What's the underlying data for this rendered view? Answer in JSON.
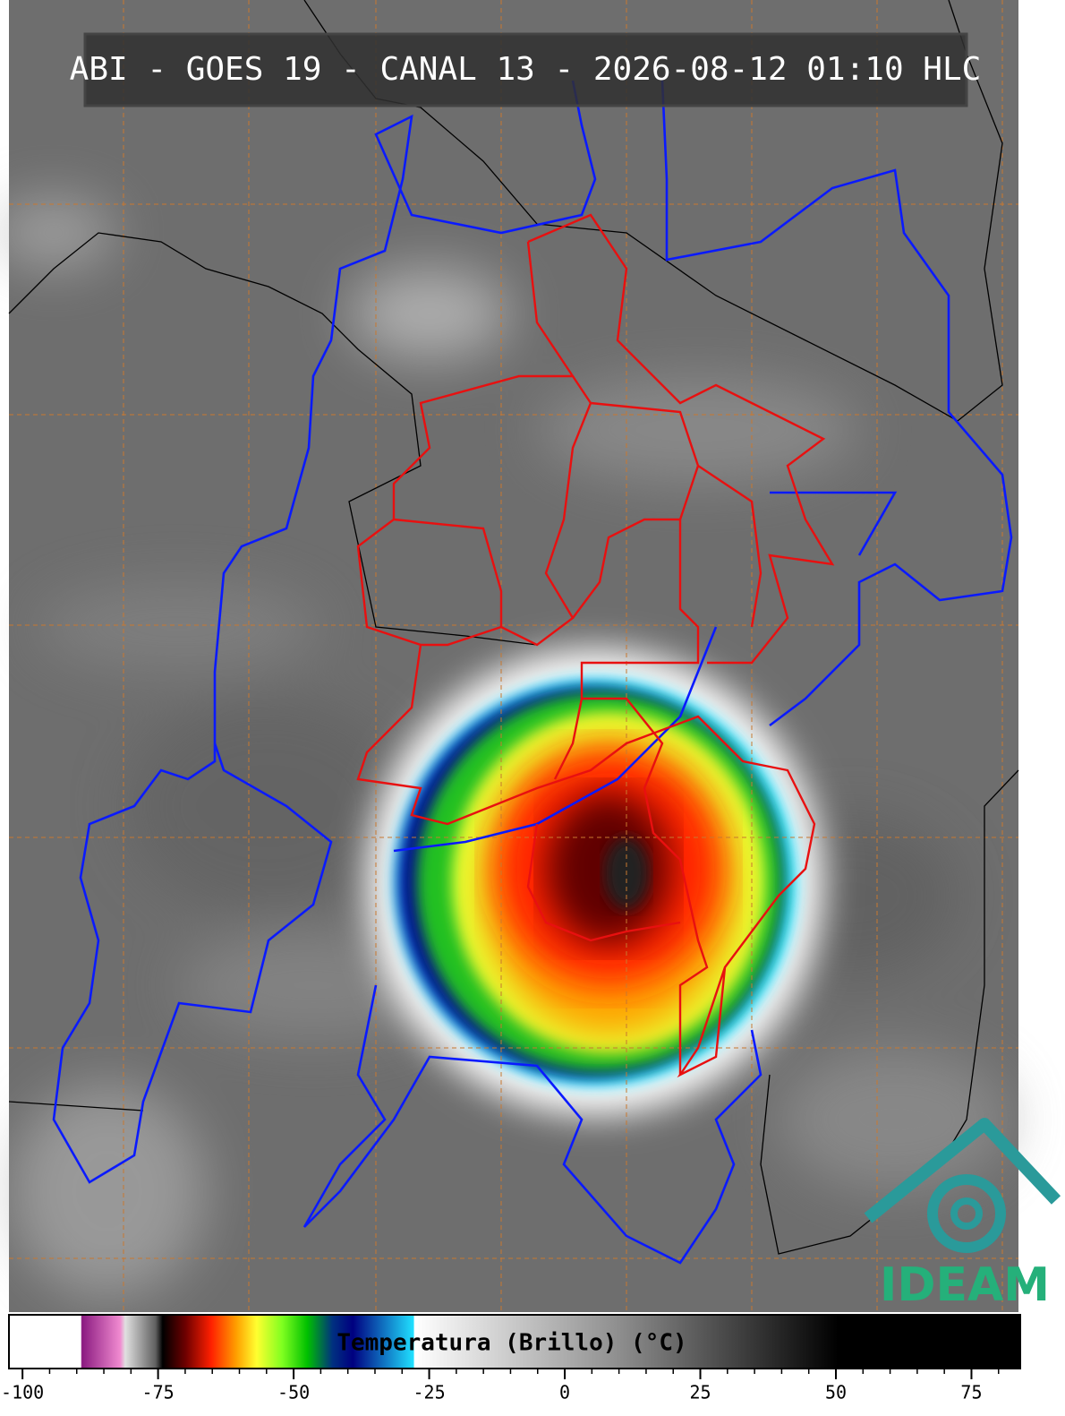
{
  "map": {
    "title": "ABI - GOES 19 - CANAL 13 - 2026-08-12 01:10 HLC",
    "logo": "IDEAM"
  },
  "colorbar": {
    "label": "Temperatura (Brillo) (°C)",
    "lim": [
      -102.5,
      84
    ],
    "ticks": [
      -100,
      -75,
      -50,
      -25,
      0,
      25,
      50,
      75
    ]
  }
}
